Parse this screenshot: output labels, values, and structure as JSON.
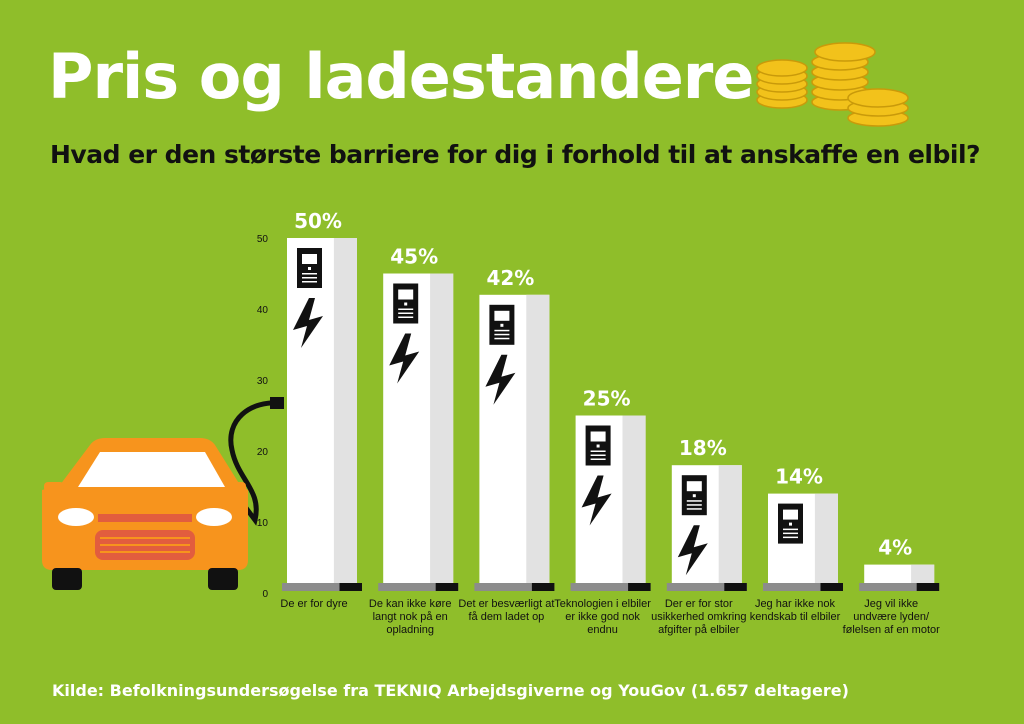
{
  "header": {
    "title": "Pris og ladestandere",
    "subtitle": "Hvad er den største barriere for dig i forhold til at anskaffe en elbil?"
  },
  "footer": {
    "source": "Kilde: Befolkningsundersøgelse fra TEKNIQ Arbejdsgiverne og YouGov (1.657 deltagere)"
  },
  "colors": {
    "background": "#8fbe2a",
    "bar": "#ffffff",
    "bar_shade": "#e2e2e2",
    "car": "#f7941d",
    "icon": "#111111"
  },
  "icons": [
    "coins-icon",
    "car-icon",
    "charging-station-icon",
    "lightning-bolt-icon"
  ],
  "chart_data": {
    "type": "bar",
    "categories": [
      "De er for dyre",
      "De kan ikke køre langt nok på en opladning",
      "Det er besværligt at få dem ladet op",
      "Teknologien i elbiler er ikke god nok endnu",
      "Der er for stor usikkerhed omkring afgifter på elbiler",
      "Jeg har ikke nok kendskab til elbiler",
      "Jeg vil ikke undvære lyden/ følelsen af en motor"
    ],
    "values": [
      50,
      45,
      42,
      25,
      18,
      14,
      4
    ],
    "data_labels": [
      "50%",
      "45%",
      "42%",
      "25%",
      "18%",
      "14%",
      "4%"
    ],
    "ylim": [
      0,
      50
    ],
    "yticks": [
      0,
      10,
      20,
      30,
      40,
      50
    ],
    "ytick_labels": [
      "0",
      "10",
      "20",
      "30",
      "40",
      "50"
    ],
    "grid": false,
    "title": "",
    "xlabel": "",
    "ylabel": ""
  }
}
